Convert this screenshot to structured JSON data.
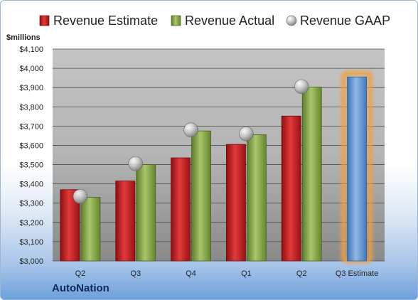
{
  "company": "AutoNation",
  "chart_data": {
    "type": "bar",
    "ylabel": "$millions",
    "ylim": [
      3000,
      4100
    ],
    "yticks": [
      3000,
      3100,
      3200,
      3300,
      3400,
      3500,
      3600,
      3700,
      3800,
      3900,
      4000,
      4100
    ],
    "ytick_labels": [
      "$3,000",
      "$3,100",
      "$3,200",
      "$3,300",
      "$3,400",
      "$3,500",
      "$3,600",
      "$3,700",
      "$3,800",
      "$3,900",
      "$4,000",
      "$4,100"
    ],
    "categories": [
      "Q2",
      "Q3",
      "Q4",
      "Q1",
      "Q2",
      "Q3 Estimate"
    ],
    "grid": true,
    "legend_position": "top",
    "series": [
      {
        "name": "Revenue Estimate",
        "type": "bar",
        "color": "#c0191c",
        "values": [
          3370,
          3415,
          3535,
          3605,
          3752,
          3955
        ]
      },
      {
        "name": "Revenue Actual",
        "type": "bar",
        "color": "#86a84a",
        "values": [
          3330,
          3500,
          3675,
          3655,
          3903,
          null
        ]
      },
      {
        "name": "Revenue GAAP",
        "type": "scatter",
        "color": "#b8b8b8",
        "values": [
          3335,
          3505,
          3680,
          3660,
          3905,
          null
        ]
      }
    ],
    "highlight_color": "#5b9bd5"
  }
}
